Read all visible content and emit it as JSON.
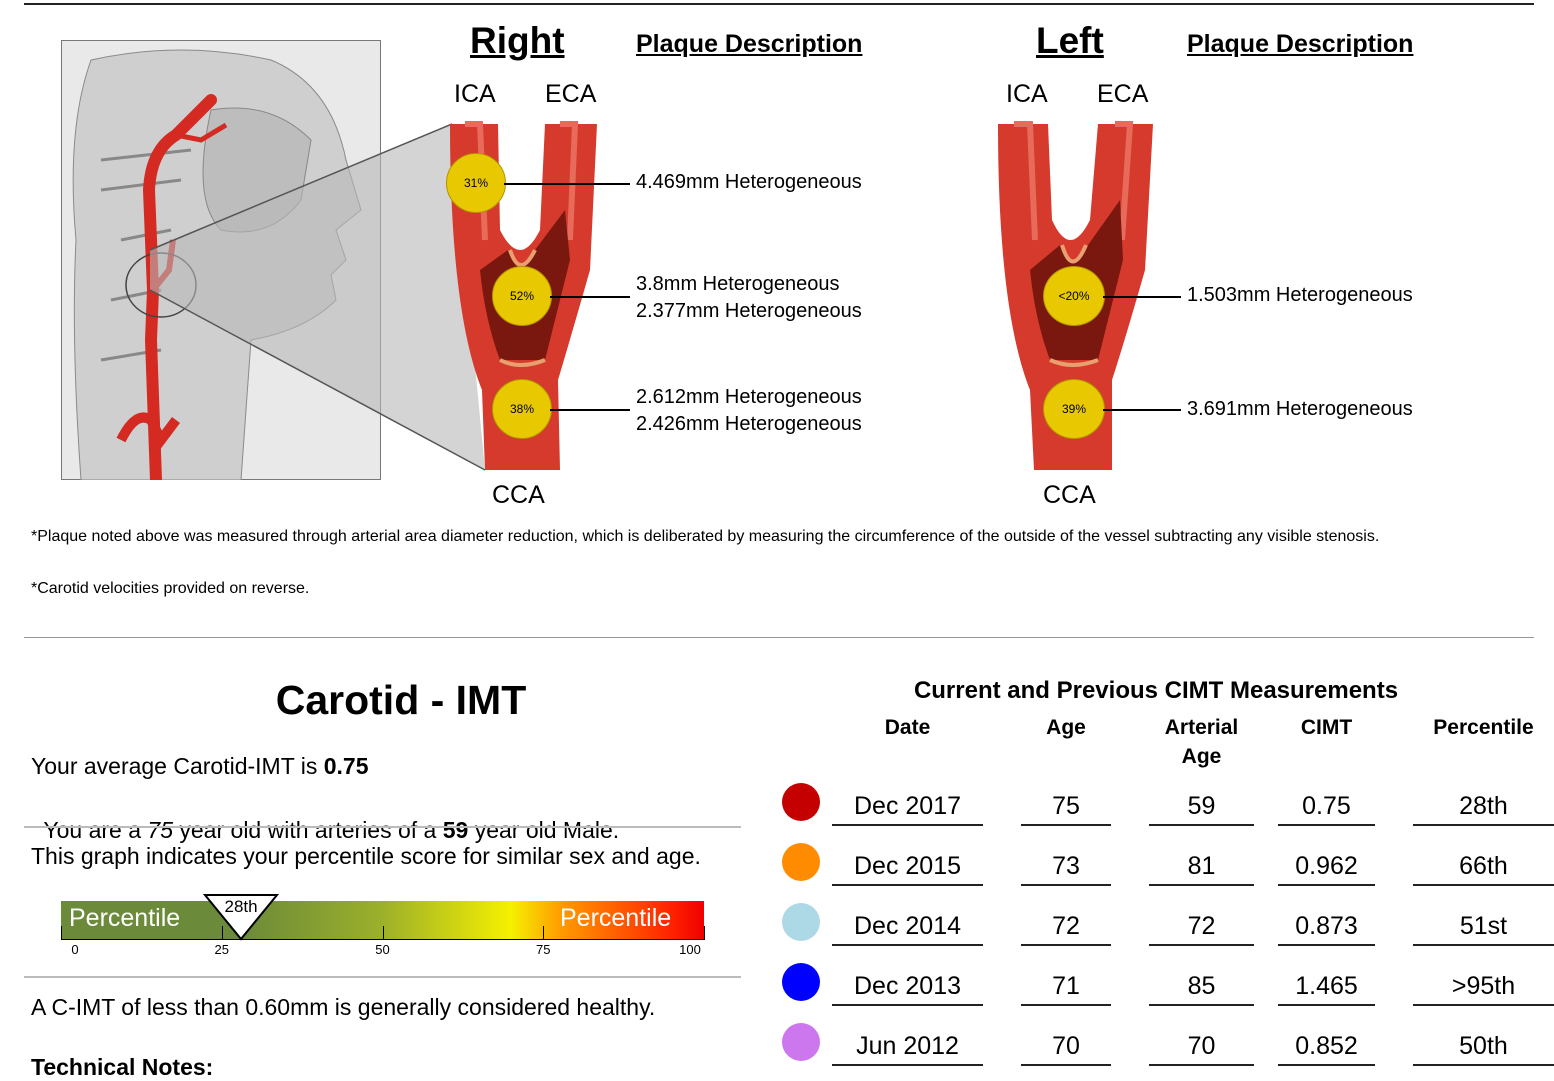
{
  "right": {
    "heading": "Right",
    "plaque_heading": "Plaque Description",
    "ica": "ICA",
    "eca": "ECA",
    "cca": "CCA",
    "plaques": [
      {
        "pct": "31%",
        "lines": [
          "4.469mm Heterogeneous"
        ]
      },
      {
        "pct": "52%",
        "lines": [
          "3.8mm Heterogeneous",
          "2.377mm Heterogeneous"
        ]
      },
      {
        "pct": "38%",
        "lines": [
          "2.612mm Heterogeneous",
          "2.426mm Heterogeneous"
        ]
      }
    ]
  },
  "left": {
    "heading": "Left",
    "plaque_heading": "Plaque Description",
    "ica": "ICA",
    "eca": "ECA",
    "cca": "CCA",
    "plaques": [
      {
        "pct": "<20%",
        "lines": [
          "1.503mm Heterogeneous"
        ]
      },
      {
        "pct": "39%",
        "lines": [
          "3.691mm Heterogeneous"
        ]
      }
    ]
  },
  "notes": {
    "note1": "*Plaque noted above was measured through arterial area diameter reduction, which is deliberated by measuring the circumference of the outside of the vessel subtracting any visible stenosis.",
    "note2": "*Carotid velocities provided on reverse."
  },
  "imt": {
    "title": "Carotid - IMT",
    "avg_prefix": "Your average Carotid-IMT is ",
    "avg_value": "0.75",
    "age_prefix": "You are a ",
    "age": "75",
    "age_mid": " year old with arteries of a ",
    "arterial_age": "59",
    "age_suffix": " year old Male.",
    "graph_text": "This graph indicates your percentile score for similar sex and age.",
    "healthy_text": "A C-IMT of less than 0.60mm is generally considered healthy.",
    "tech_notes": "Technical Notes:",
    "bar": {
      "left_label": "Percentile",
      "right_label": "Percentile",
      "marker_label": "28th",
      "marker_value": 28,
      "ticks": [
        "0",
        "25",
        "50",
        "75",
        "100"
      ]
    }
  },
  "cimt_table": {
    "title": "Current and Previous CIMT Measurements",
    "headers": {
      "date": "Date",
      "age": "Age",
      "arterial_age_1": "Arterial",
      "arterial_age_2": "Age",
      "cimt": "CIMT",
      "percentile": "Percentile"
    },
    "rows": [
      {
        "color": "#c40000",
        "date": "Dec 2017",
        "age": "75",
        "arterial_age": "59",
        "cimt": "0.75",
        "percentile": "28th"
      },
      {
        "color": "#ff8c00",
        "date": "Dec 2015",
        "age": "73",
        "arterial_age": "81",
        "cimt": "0.962",
        "percentile": "66th"
      },
      {
        "color": "#add8e6",
        "date": "Dec 2014",
        "age": "72",
        "arterial_age": "72",
        "cimt": "0.873",
        "percentile": "51st"
      },
      {
        "color": "#0000ff",
        "date": "Dec 2013",
        "age": "71",
        "arterial_age": "85",
        "cimt": "1.465",
        "percentile": ">95th"
      },
      {
        "color": "#cc77ee",
        "date": "Jun 2012",
        "age": "70",
        "arterial_age": "70",
        "cimt": "0.852",
        "percentile": "50th"
      }
    ]
  }
}
